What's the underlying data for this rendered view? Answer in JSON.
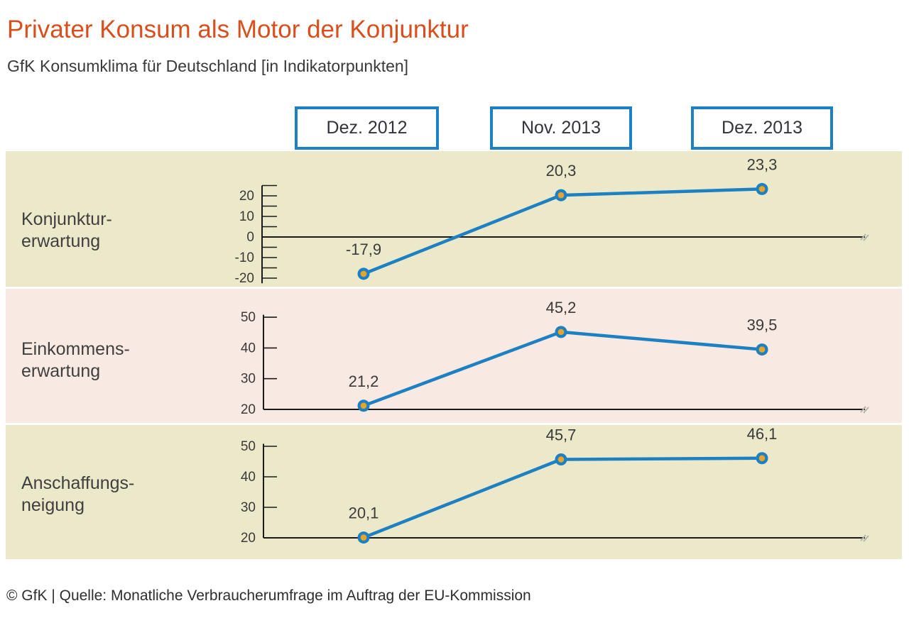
{
  "header": {
    "title": "Privater Konsum als Motor der Konjunktur",
    "subtitle": "GfK Konsumklima für Deutschland [in Indikatorpunkten]"
  },
  "columns": [
    {
      "label": "Dez. 2012"
    },
    {
      "label": "Nov. 2013"
    },
    {
      "label": "Dez. 2013"
    }
  ],
  "footer": {
    "source": "© GfK | Quelle: Monatliche Verbraucherumfrage im Auftrag der EU-Kommission"
  },
  "colors": {
    "title_red": "#d84e1c",
    "line_blue": "#1d80c2",
    "marker_orange": "#e8a32b",
    "axis_black": "#1a1a1a",
    "text_dark": "#3a3a3a",
    "panel_beige": "#ece9cb",
    "panel_rose": "#f8e9e2",
    "box_border_blue": "#1d80c2",
    "break_mark_gray": "#b3b3aa"
  },
  "chart_data": [
    {
      "type": "line",
      "title": "Konjunkturerwartung",
      "label_lines": [
        "Konjunktur-",
        "erwartung"
      ],
      "categories": [
        "Dez. 2012",
        "Nov. 2013",
        "Dez. 2013"
      ],
      "values": [
        -17.9,
        20.3,
        23.3
      ],
      "value_labels": [
        "-17,9",
        "20,3",
        "23,3"
      ],
      "ylim": [
        -22.5,
        25
      ],
      "yticks": [
        20,
        10,
        0,
        -10,
        -20
      ],
      "minor_tick_step": 5,
      "baseline_value": 0,
      "grid": false,
      "legend": "none"
    },
    {
      "type": "line",
      "title": "Einkommenserwartung",
      "label_lines": [
        "Einkommens-",
        "erwartung"
      ],
      "categories": [
        "Dez. 2012",
        "Nov. 2013",
        "Dez. 2013"
      ],
      "values": [
        21.2,
        45.2,
        39.5
      ],
      "value_labels": [
        "21,2",
        "45,2",
        "39,5"
      ],
      "ylim": [
        20,
        50.8
      ],
      "yticks": [
        50,
        40,
        30,
        20
      ],
      "baseline_value": 20,
      "grid": false,
      "legend": "none"
    },
    {
      "type": "line",
      "title": "Anschaffungsneigung",
      "label_lines": [
        "Anschaffungs-",
        "neigung"
      ],
      "categories": [
        "Dez. 2012",
        "Nov. 2013",
        "Dez. 2013"
      ],
      "values": [
        20.1,
        45.7,
        46.1
      ],
      "value_labels": [
        "20,1",
        "45,7",
        "46,1"
      ],
      "ylim": [
        20,
        50.8
      ],
      "yticks": [
        50,
        40,
        30,
        20
      ],
      "baseline_value": 20,
      "grid": false,
      "legend": "none"
    }
  ]
}
